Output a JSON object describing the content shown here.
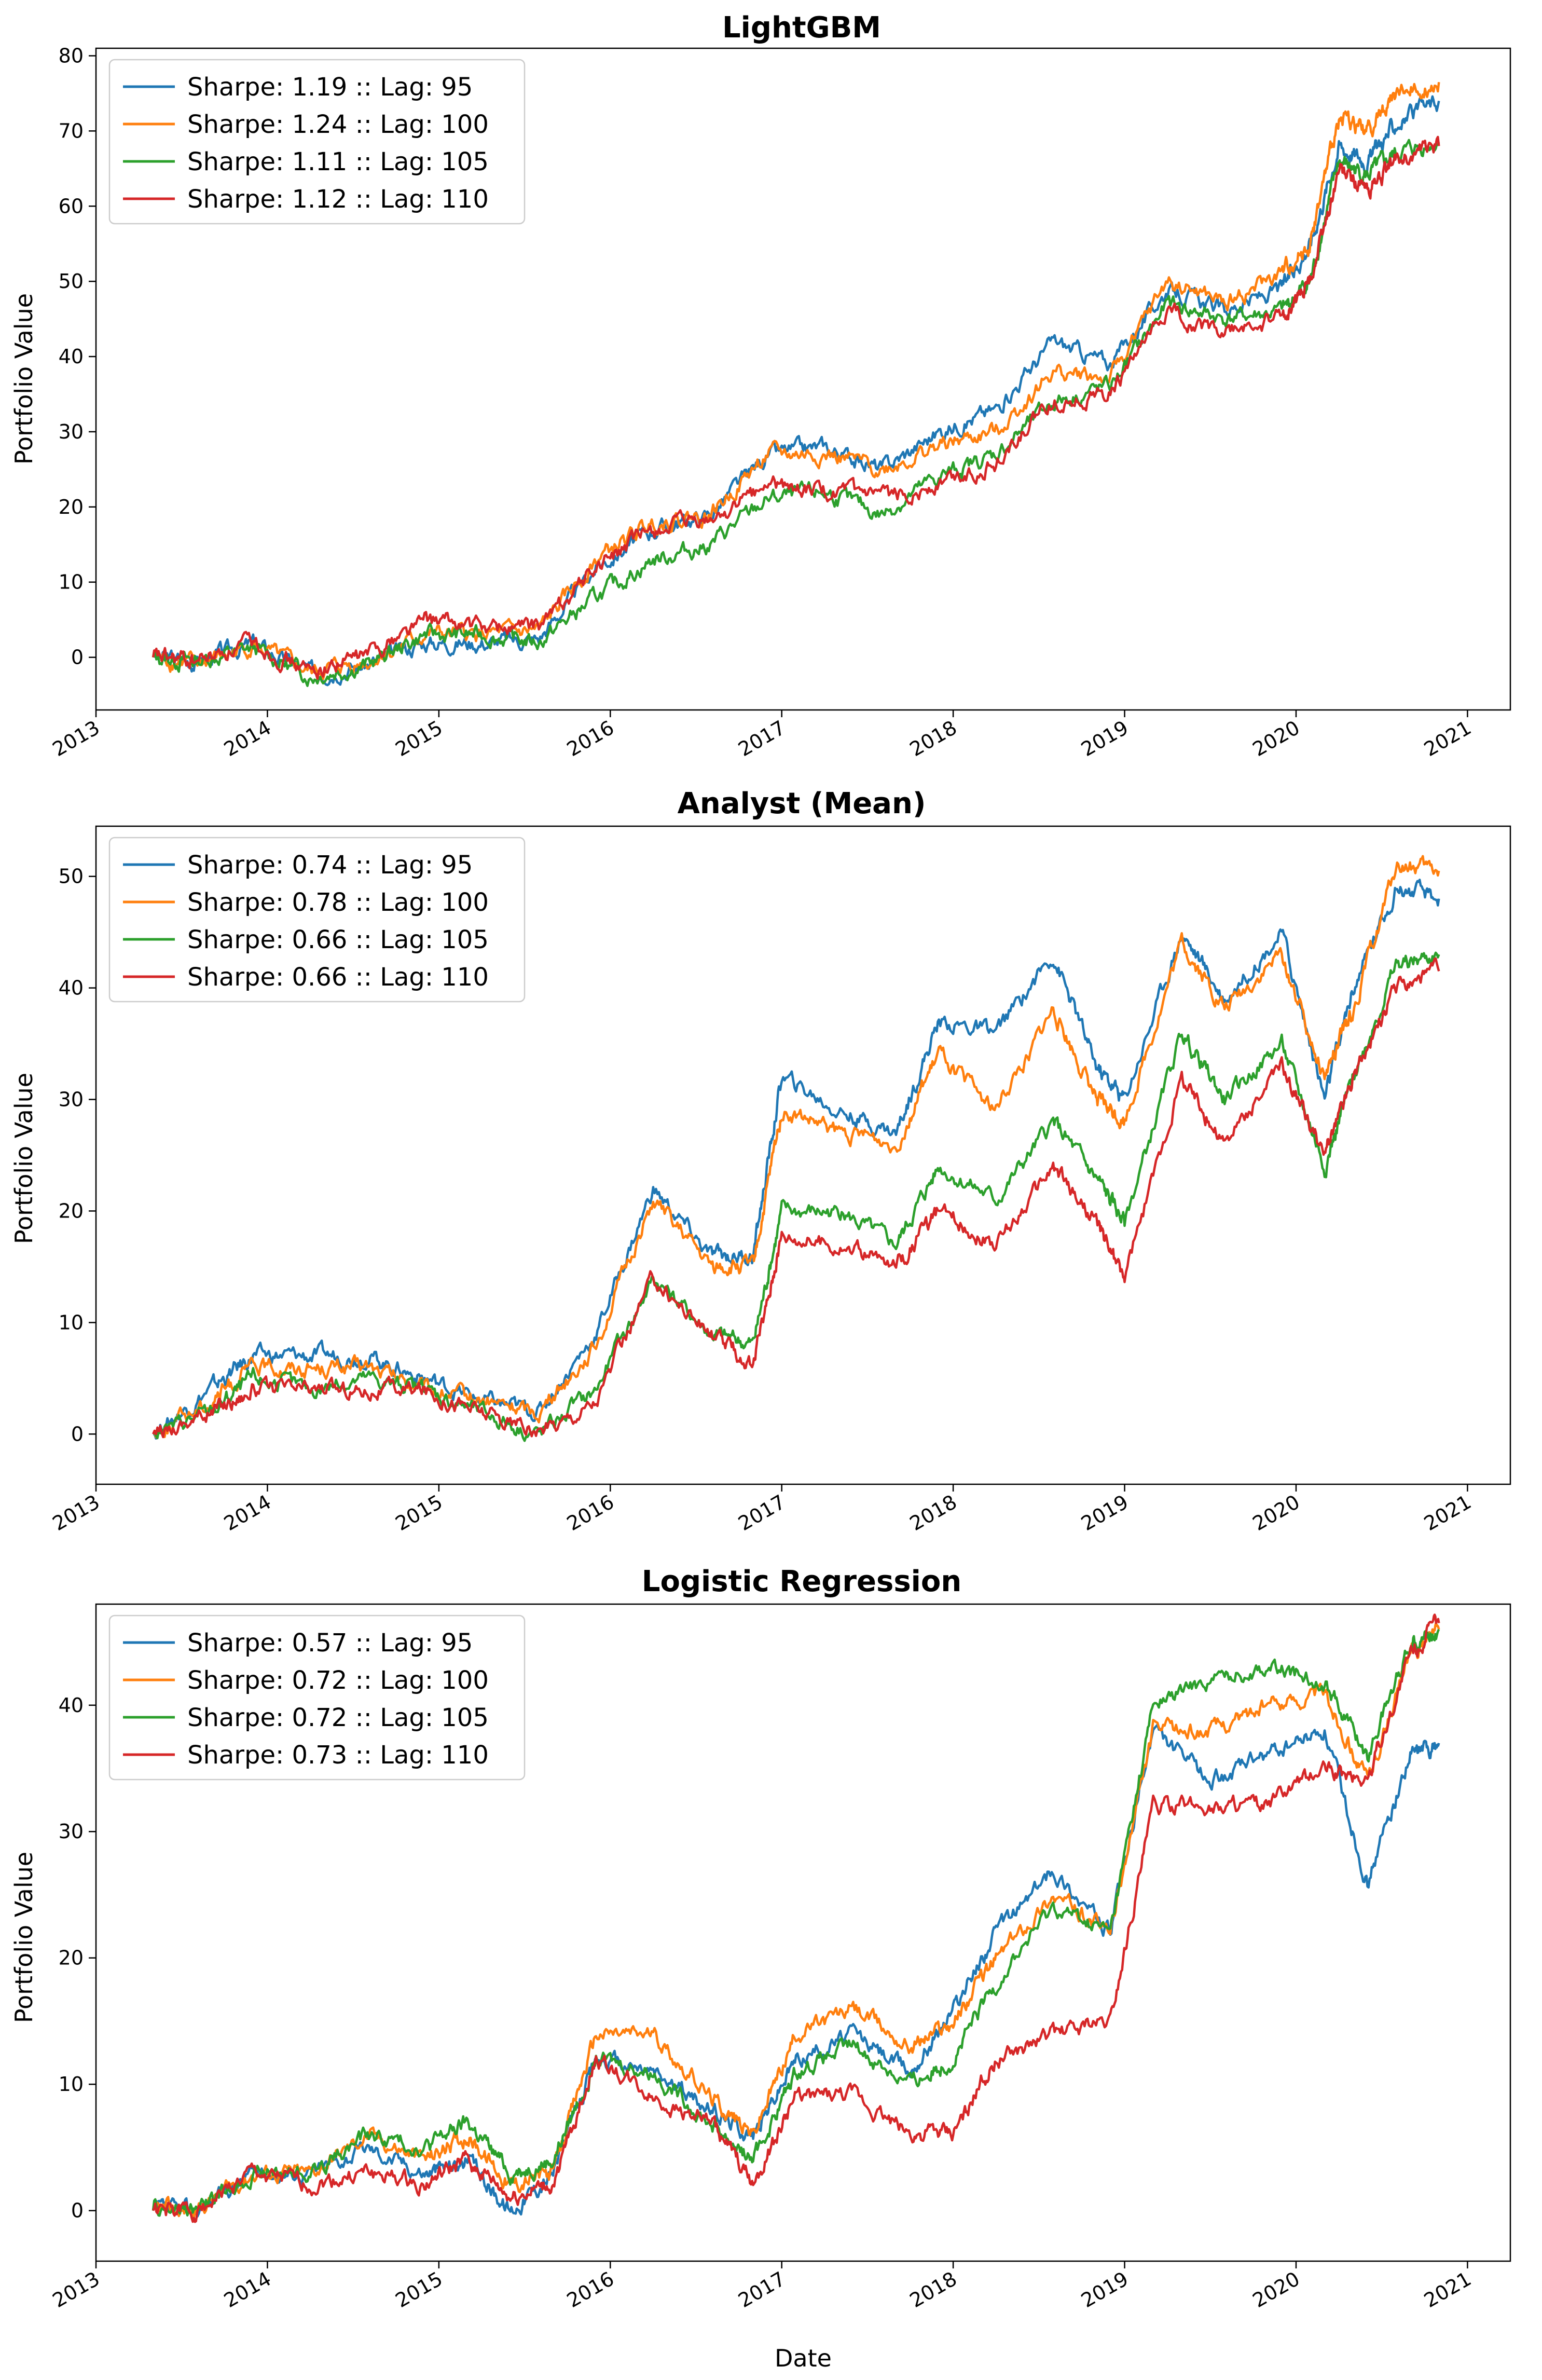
{
  "figure": {
    "xlabel": "Date",
    "x_ticks": [
      "2013",
      "2014",
      "2015",
      "2016",
      "2017",
      "2018",
      "2019",
      "2020",
      "2021"
    ]
  },
  "chart_data": [
    {
      "type": "line",
      "title": "LightGBM",
      "ylabel": "Portfolio Value",
      "xlabel": "",
      "xlim": [
        "2013-01-01",
        "2021-04-01"
      ],
      "ylim": [
        -7,
        81
      ],
      "y_ticks": [
        0,
        10,
        20,
        30,
        40,
        50,
        60,
        70,
        80
      ],
      "legend_position": "top-left",
      "grid": false,
      "series": [
        {
          "name": "Sharpe: 1.19 :: Lag: 95",
          "color": "#1f77b4",
          "x": [
            "2013-05",
            "2013-08",
            "2013-12",
            "2014-04",
            "2014-08",
            "2014-12",
            "2015-04",
            "2015-08",
            "2015-12",
            "2016-04",
            "2016-08",
            "2016-12",
            "2017-04",
            "2017-08",
            "2017-12",
            "2018-04",
            "2018-08",
            "2018-12",
            "2019-04",
            "2019-08",
            "2019-12",
            "2020-02",
            "2020-04",
            "2020-06",
            "2020-08",
            "2020-11"
          ],
          "y": [
            0,
            -0.5,
            1.8,
            -2,
            -1,
            2,
            2,
            2.5,
            12,
            17,
            19,
            27,
            28,
            25,
            30,
            33,
            42,
            39,
            49,
            46,
            49,
            55,
            68,
            66,
            71,
            74
          ]
        },
        {
          "name": "Sharpe: 1.24 :: Lag: 100",
          "color": "#ff7f0e",
          "x": [
            "2013-05",
            "2013-08",
            "2013-12",
            "2014-04",
            "2014-08",
            "2014-12",
            "2015-04",
            "2015-08",
            "2015-12",
            "2016-04",
            "2016-08",
            "2016-12",
            "2017-04",
            "2017-08",
            "2017-12",
            "2018-04",
            "2018-08",
            "2018-12",
            "2019-04",
            "2019-08",
            "2019-12",
            "2020-02",
            "2020-04",
            "2020-06",
            "2020-08",
            "2020-11"
          ],
          "y": [
            0,
            -1,
            1.5,
            -2,
            -0.5,
            3,
            3,
            3.5,
            13,
            18,
            19,
            27,
            27,
            25,
            28,
            30,
            38,
            37,
            50,
            47,
            51,
            55,
            72,
            70,
            75,
            76.5
          ]
        },
        {
          "name": "Sharpe: 1.11 :: Lag: 105",
          "color": "#2ca02c",
          "x": [
            "2013-05",
            "2013-08",
            "2013-12",
            "2014-04",
            "2014-08",
            "2014-12",
            "2015-04",
            "2015-08",
            "2015-12",
            "2016-04",
            "2016-08",
            "2016-12",
            "2017-04",
            "2017-08",
            "2017-12",
            "2018-04",
            "2018-08",
            "2018-12",
            "2019-04",
            "2019-08",
            "2019-12",
            "2020-02",
            "2020-04",
            "2020-06",
            "2020-08",
            "2020-11"
          ],
          "y": [
            0,
            -0.5,
            1.2,
            -2.5,
            -1,
            3,
            3,
            2,
            8,
            13,
            15,
            21,
            22,
            19,
            24,
            27,
            34,
            36,
            47,
            45,
            46,
            50,
            66,
            64,
            67,
            68.5
          ]
        },
        {
          "name": "Sharpe: 1.12 :: Lag: 110",
          "color": "#d62728",
          "x": [
            "2013-05",
            "2013-08",
            "2013-12",
            "2014-04",
            "2014-08",
            "2014-12",
            "2015-04",
            "2015-08",
            "2015-12",
            "2016-04",
            "2016-08",
            "2016-12",
            "2017-04",
            "2017-08",
            "2017-12",
            "2018-04",
            "2018-08",
            "2018-12",
            "2019-04",
            "2019-08",
            "2019-12",
            "2020-02",
            "2020-04",
            "2020-06",
            "2020-08",
            "2020-11"
          ],
          "y": [
            0,
            -0.5,
            2,
            -2,
            0.5,
            5,
            4,
            4,
            12,
            17,
            18,
            23,
            22,
            21,
            23,
            26,
            34,
            35,
            46,
            43,
            45,
            50,
            65,
            62,
            66,
            68
          ]
        }
      ]
    },
    {
      "type": "line",
      "title": "Analyst (Mean)",
      "ylabel": "Portfolio Value",
      "xlabel": "",
      "xlim": [
        "2013-01-01",
        "2021-04-01"
      ],
      "ylim": [
        -4.5,
        54.5
      ],
      "y_ticks": [
        0,
        10,
        20,
        30,
        40,
        50
      ],
      "legend_position": "top-left",
      "grid": false,
      "series": [
        {
          "name": "Sharpe: 0.74 :: Lag: 95",
          "color": "#1f77b4",
          "x": [
            "2013-05",
            "2013-09",
            "2013-12",
            "2014-04",
            "2014-08",
            "2014-12",
            "2015-04",
            "2015-08",
            "2015-12",
            "2016-04",
            "2016-08",
            "2016-11",
            "2017-01",
            "2017-05",
            "2017-09",
            "2017-12",
            "2018-04",
            "2018-08",
            "2018-11",
            "2019-01",
            "2019-05",
            "2019-08",
            "2019-12",
            "2020-03",
            "2020-05",
            "2020-08",
            "2020-11"
          ],
          "y": [
            0,
            4,
            7,
            7,
            7,
            5,
            3,
            2,
            9,
            22,
            16,
            16,
            32,
            29,
            27,
            37,
            36,
            43,
            33,
            30,
            45,
            39,
            45,
            30,
            40,
            49,
            48
          ]
        },
        {
          "name": "Sharpe: 0.78 :: Lag: 100",
          "color": "#ff7f0e",
          "x": [
            "2013-05",
            "2013-09",
            "2013-12",
            "2014-04",
            "2014-08",
            "2014-12",
            "2015-04",
            "2015-08",
            "2015-12",
            "2016-04",
            "2016-08",
            "2016-11",
            "2017-01",
            "2017-05",
            "2017-09",
            "2017-12",
            "2018-04",
            "2018-08",
            "2018-11",
            "2019-01",
            "2019-05",
            "2019-08",
            "2019-12",
            "2020-03",
            "2020-05",
            "2020-08",
            "2020-11"
          ],
          "y": [
            0,
            3,
            6,
            6,
            6,
            4,
            3,
            2,
            8,
            21,
            15,
            15,
            29,
            27,
            26,
            34,
            29,
            38,
            30,
            28,
            44,
            38,
            43,
            32,
            38,
            51,
            50.5
          ]
        },
        {
          "name": "Sharpe: 0.66 :: Lag: 105",
          "color": "#2ca02c",
          "x": [
            "2013-05",
            "2013-09",
            "2013-12",
            "2014-04",
            "2014-08",
            "2014-12",
            "2015-04",
            "2015-08",
            "2015-12",
            "2016-04",
            "2016-08",
            "2016-11",
            "2017-01",
            "2017-05",
            "2017-09",
            "2017-12",
            "2018-04",
            "2018-08",
            "2018-11",
            "2019-01",
            "2019-05",
            "2019-08",
            "2019-12",
            "2020-03",
            "2020-05",
            "2020-08",
            "2020-11"
          ],
          "y": [
            0,
            2,
            5,
            4,
            5,
            4,
            2,
            0,
            4,
            14,
            9,
            8,
            20,
            20,
            17,
            24,
            21,
            28,
            23,
            19,
            36,
            30,
            35,
            24,
            32,
            42,
            43
          ]
        },
        {
          "name": "Sharpe: 0.66 :: Lag: 110",
          "color": "#d62728",
          "x": [
            "2013-05",
            "2013-09",
            "2013-12",
            "2014-04",
            "2014-08",
            "2014-12",
            "2015-04",
            "2015-08",
            "2015-12",
            "2016-04",
            "2016-08",
            "2016-11",
            "2017-01",
            "2017-05",
            "2017-09",
            "2017-12",
            "2018-04",
            "2018-08",
            "2018-11",
            "2019-01",
            "2019-05",
            "2019-08",
            "2019-12",
            "2020-03",
            "2020-05",
            "2020-08",
            "2020-11"
          ],
          "y": [
            0,
            2,
            4,
            4,
            4,
            4,
            2,
            0,
            3,
            14,
            9,
            6,
            18,
            17,
            15,
            20,
            17,
            24,
            19,
            14,
            32,
            26,
            33,
            25,
            32,
            40,
            41.5
          ]
        }
      ]
    },
    {
      "type": "line",
      "title": "Logistic Regression",
      "ylabel": "Portfolio Value",
      "xlabel": "Date",
      "xlim": [
        "2013-01-01",
        "2021-04-01"
      ],
      "ylim": [
        -4,
        48
      ],
      "y_ticks": [
        0,
        10,
        20,
        30,
        40
      ],
      "legend_position": "top-left",
      "grid": false,
      "series": [
        {
          "name": "Sharpe: 0.57 :: Lag: 95",
          "color": "#1f77b4",
          "x": [
            "2013-05",
            "2013-08",
            "2013-12",
            "2014-04",
            "2014-08",
            "2014-12",
            "2015-03",
            "2015-06",
            "2015-09",
            "2015-12",
            "2016-04",
            "2016-08",
            "2016-11",
            "2017-02",
            "2017-06",
            "2017-10",
            "2018-01",
            "2018-04",
            "2018-08",
            "2018-12",
            "2019-03",
            "2019-07",
            "2019-11",
            "2020-03",
            "2020-06",
            "2020-09",
            "2020-11"
          ],
          "y": [
            0,
            0,
            3,
            3,
            5,
            3,
            4,
            0,
            3,
            12,
            11,
            8,
            6,
            12,
            14,
            11,
            16,
            22,
            27,
            22,
            38,
            34,
            36,
            38,
            26,
            36,
            37
          ]
        },
        {
          "name": "Sharpe: 0.72 :: Lag: 100",
          "color": "#ff7f0e",
          "x": [
            "2013-05",
            "2013-08",
            "2013-12",
            "2014-04",
            "2014-08",
            "2014-12",
            "2015-03",
            "2015-06",
            "2015-09",
            "2015-12",
            "2016-04",
            "2016-08",
            "2016-11",
            "2017-02",
            "2017-06",
            "2017-10",
            "2018-01",
            "2018-04",
            "2018-08",
            "2018-12",
            "2019-03",
            "2019-07",
            "2019-11",
            "2020-03",
            "2020-06",
            "2020-09",
            "2020-11"
          ],
          "y": [
            0,
            0,
            3,
            3,
            6,
            4,
            6,
            2,
            3,
            14,
            14,
            9,
            6,
            14,
            16,
            13,
            15,
            20,
            25,
            22,
            38,
            38,
            40,
            41,
            34,
            44,
            46
          ]
        },
        {
          "name": "Sharpe: 0.72 :: Lag: 105",
          "color": "#2ca02c",
          "x": [
            "2013-05",
            "2013-08",
            "2013-12",
            "2014-04",
            "2014-08",
            "2014-12",
            "2015-03",
            "2015-06",
            "2015-09",
            "2015-12",
            "2016-04",
            "2016-08",
            "2016-11",
            "2017-02",
            "2017-06",
            "2017-10",
            "2018-01",
            "2018-04",
            "2018-08",
            "2018-12",
            "2019-03",
            "2019-07",
            "2019-11",
            "2020-03",
            "2020-06",
            "2020-09",
            "2020-11"
          ],
          "y": [
            0,
            0,
            3,
            3,
            6,
            5,
            7,
            3,
            4,
            12,
            11,
            7,
            4,
            11,
            13,
            10,
            12,
            18,
            24,
            22,
            40,
            42,
            43,
            42,
            36,
            45,
            46
          ]
        },
        {
          "name": "Sharpe: 0.73 :: Lag: 110",
          "color": "#d62728",
          "x": [
            "2013-05",
            "2013-08",
            "2013-12",
            "2014-04",
            "2014-08",
            "2014-12",
            "2015-03",
            "2015-06",
            "2015-09",
            "2015-12",
            "2016-04",
            "2016-08",
            "2016-11",
            "2017-02",
            "2017-06",
            "2017-10",
            "2018-01",
            "2018-04",
            "2018-08",
            "2018-12",
            "2019-03",
            "2019-07",
            "2019-11",
            "2020-03",
            "2020-06",
            "2020-09",
            "2020-11"
          ],
          "y": [
            0,
            0,
            3,
            2,
            3,
            2,
            4,
            1,
            2,
            12,
            9,
            7,
            2,
            9,
            9,
            6,
            6,
            12,
            14,
            15,
            32,
            32,
            32,
            35,
            34,
            44,
            46.5
          ]
        }
      ]
    }
  ]
}
